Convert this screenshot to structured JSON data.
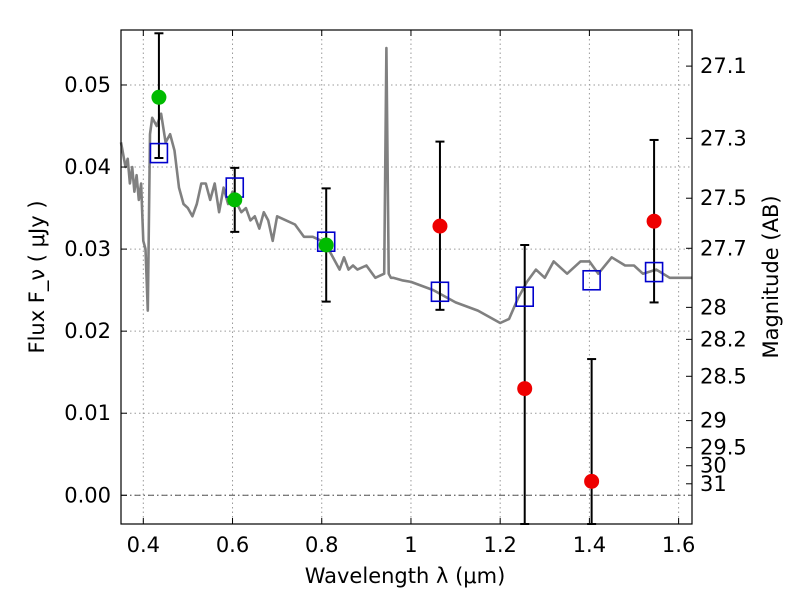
{
  "chart_data": {
    "type": "scatter",
    "xlabel": "Wavelength  λ (μm)",
    "ylabel": "Flux  F_ν  ( μJy )",
    "ylabel_right": "Magnitude (AB)",
    "xlim": [
      0.35,
      1.63
    ],
    "ylim": [
      -0.0035,
      0.0567
    ],
    "x_ticks": [
      0.4,
      0.6,
      0.8,
      1.0,
      1.2,
      1.4,
      1.6
    ],
    "x_tick_labels": [
      "0.4",
      "0.6",
      "0.8",
      "1",
      "1.2",
      "1.4",
      "1.6"
    ],
    "y_ticks": [
      0.0,
      0.01,
      0.02,
      0.03,
      0.04,
      0.05
    ],
    "y_tick_labels": [
      "0.00",
      "0.01",
      "0.02",
      "0.03",
      "0.04",
      "0.05"
    ],
    "magnitude_ticks": [
      {
        "label": "27.1",
        "flux": 0.0523
      },
      {
        "label": "27.3",
        "flux": 0.0435
      },
      {
        "label": "27.5",
        "flux": 0.0362
      },
      {
        "label": "27.7",
        "flux": 0.0301
      },
      {
        "label": "28",
        "flux": 0.0229
      },
      {
        "label": "28.2",
        "flux": 0.019
      },
      {
        "label": "28.5",
        "flux": 0.0145
      },
      {
        "label": "29",
        "flux": 0.0091
      },
      {
        "label": "29.5",
        "flux": 0.0058
      },
      {
        "label": "30",
        "flux": 0.0036
      },
      {
        "label": "31",
        "flux": 0.0014
      }
    ],
    "grid": true,
    "series": [
      {
        "kind": "line",
        "color": "#808080",
        "x": [
          0.35,
          0.36,
          0.365,
          0.37,
          0.375,
          0.38,
          0.385,
          0.39,
          0.395,
          0.4,
          0.405,
          0.41,
          0.415,
          0.42,
          0.43,
          0.44,
          0.45,
          0.46,
          0.47,
          0.48,
          0.49,
          0.5,
          0.51,
          0.52,
          0.53,
          0.54,
          0.55,
          0.56,
          0.57,
          0.58,
          0.59,
          0.6,
          0.61,
          0.62,
          0.63,
          0.64,
          0.65,
          0.66,
          0.67,
          0.68,
          0.69,
          0.7,
          0.72,
          0.74,
          0.76,
          0.78,
          0.8,
          0.82,
          0.84,
          0.85,
          0.86,
          0.87,
          0.88,
          0.9,
          0.92,
          0.94,
          0.945,
          0.95,
          0.955,
          0.96,
          0.98,
          1.0,
          1.05,
          1.1,
          1.15,
          1.2,
          1.22,
          1.24,
          1.25,
          1.26,
          1.28,
          1.3,
          1.32,
          1.35,
          1.38,
          1.4,
          1.42,
          1.45,
          1.48,
          1.5,
          1.52,
          1.55,
          1.58,
          1.6,
          1.63
        ],
        "y": [
          0.043,
          0.04,
          0.041,
          0.038,
          0.04,
          0.037,
          0.039,
          0.036,
          0.038,
          0.031,
          0.03,
          0.0225,
          0.044,
          0.046,
          0.045,
          0.0465,
          0.043,
          0.044,
          0.042,
          0.0375,
          0.0355,
          0.035,
          0.034,
          0.0355,
          0.038,
          0.038,
          0.036,
          0.038,
          0.0345,
          0.0375,
          0.0355,
          0.037,
          0.0355,
          0.0345,
          0.035,
          0.0335,
          0.034,
          0.0325,
          0.0345,
          0.0335,
          0.031,
          0.034,
          0.0335,
          0.033,
          0.0315,
          0.0315,
          0.031,
          0.0295,
          0.0275,
          0.029,
          0.0275,
          0.028,
          0.0275,
          0.028,
          0.0265,
          0.027,
          0.0545,
          0.027,
          0.0265,
          0.0265,
          0.0262,
          0.026,
          0.025,
          0.0235,
          0.0225,
          0.021,
          0.0215,
          0.024,
          0.025,
          0.026,
          0.0275,
          0.0265,
          0.0285,
          0.027,
          0.0285,
          0.0285,
          0.027,
          0.029,
          0.028,
          0.028,
          0.027,
          0.0275,
          0.0265,
          0.0265,
          0.0265
        ]
      },
      {
        "kind": "open-square",
        "color": "#0000cc",
        "x": [
          0.435,
          0.605,
          0.81,
          1.065,
          1.255,
          1.405,
          1.545
        ],
        "y": [
          0.0417,
          0.0375,
          0.0309,
          0.0248,
          0.0242,
          0.0262,
          0.0272
        ]
      },
      {
        "kind": "filled-circle",
        "color": "#00bb00",
        "x": [
          0.435,
          0.605,
          0.81
        ],
        "y": [
          0.0485,
          0.036,
          0.0305
        ]
      },
      {
        "kind": "filled-circle-errorbar",
        "color": "#ee0000",
        "x": [
          0.435,
          0.605,
          0.81,
          1.065,
          1.255,
          1.405,
          1.545
        ],
        "y": [
          null,
          null,
          null,
          0.0328,
          0.013,
          0.0017,
          0.0334
        ],
        "err_low": [
          0.0411,
          0.0321,
          0.0236,
          0.0226,
          -0.0035,
          -0.0035,
          0.0235
        ],
        "err_high": [
          0.0563,
          0.0399,
          0.0374,
          0.0431,
          0.0305,
          0.0166,
          0.0433
        ]
      }
    ]
  }
}
